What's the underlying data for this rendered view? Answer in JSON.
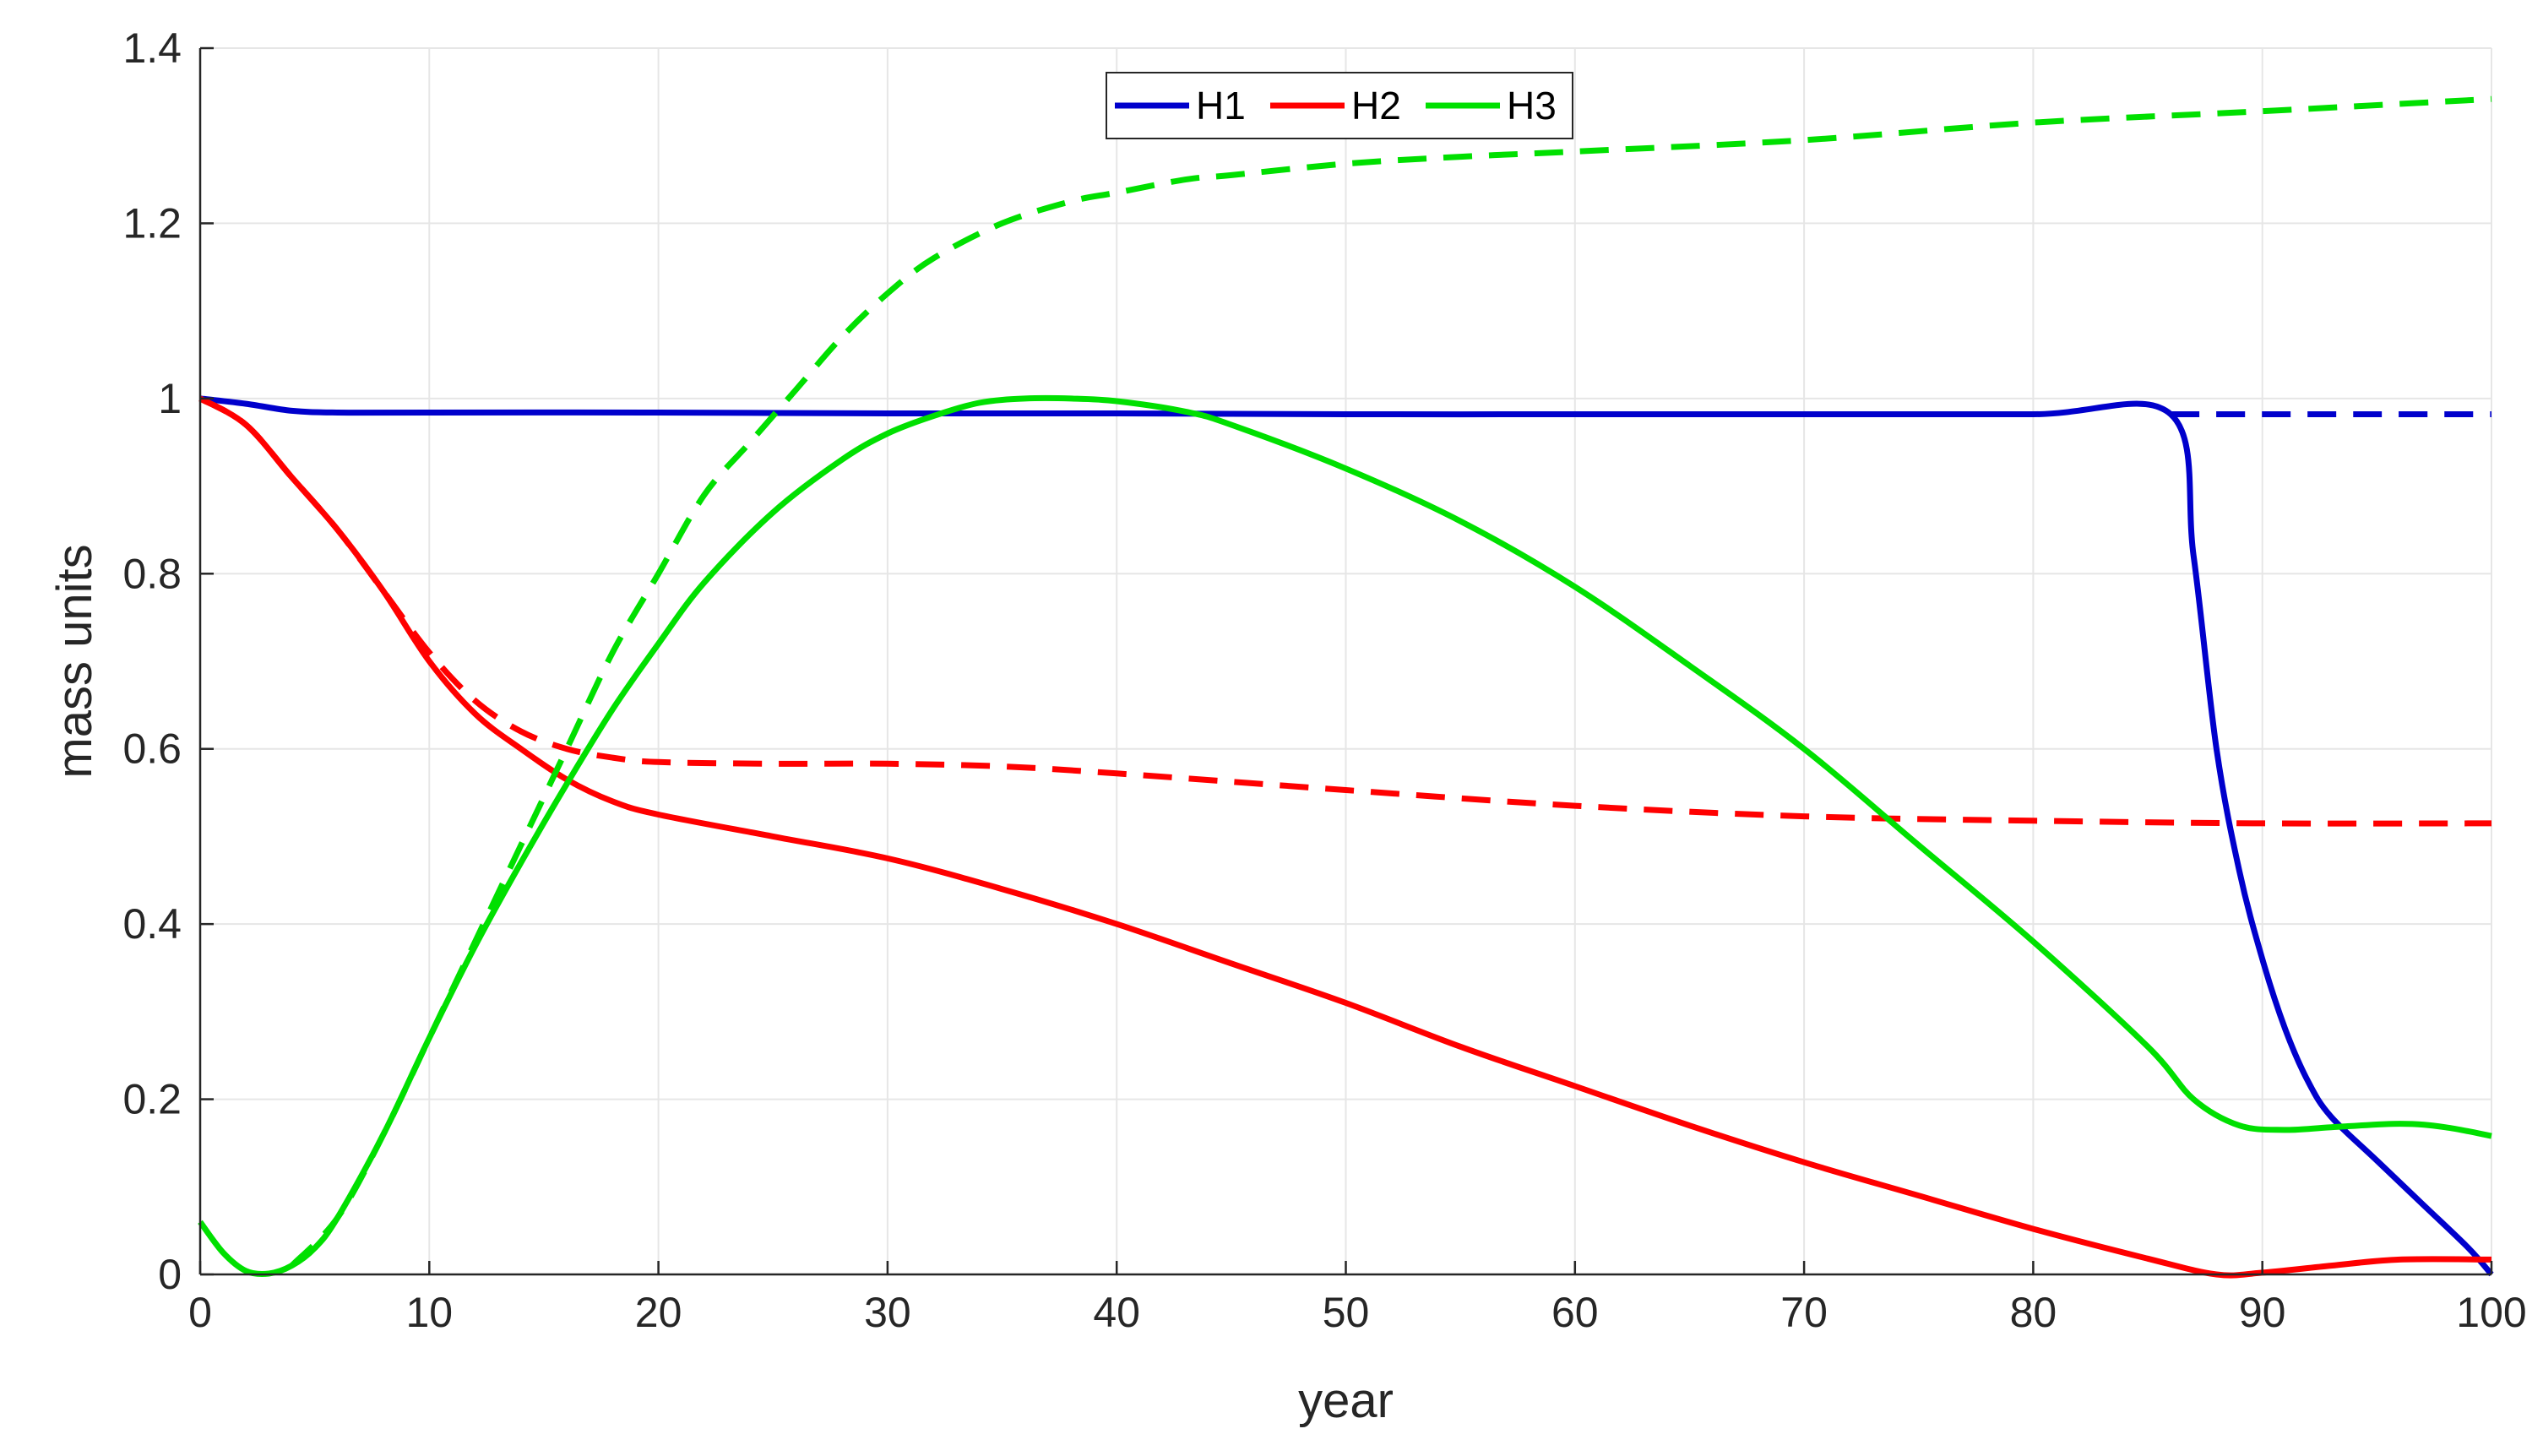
{
  "chart_data": {
    "type": "line",
    "title": "",
    "xlabel": "year",
    "ylabel": "mass units",
    "xlim": [
      0,
      100
    ],
    "ylim": [
      0,
      1.4
    ],
    "xticks": [
      "0",
      "10",
      "20",
      "30",
      "40",
      "50",
      "60",
      "70",
      "80",
      "90",
      "100"
    ],
    "yticks": [
      "0",
      "0.2",
      "0.4",
      "0.6",
      "0.8",
      "1",
      "1.2",
      "1.4"
    ],
    "grid": true,
    "legend": {
      "placement": "top-center",
      "entries": [
        "H1",
        "H2",
        "H3"
      ]
    },
    "series": [
      {
        "name": "H1",
        "color": "#0000cc",
        "style": "solid",
        "x": [
          0,
          2,
          4,
          6,
          10,
          20,
          30,
          40,
          50,
          60,
          70,
          80,
          86,
          87,
          88,
          89,
          90,
          91,
          92,
          93,
          95,
          97,
          99,
          100
        ],
        "y": [
          1.0,
          0.994,
          0.986,
          0.984,
          0.984,
          0.984,
          0.983,
          0.983,
          0.982,
          0.982,
          0.982,
          0.982,
          0.982,
          0.82,
          0.6,
          0.46,
          0.36,
          0.28,
          0.22,
          0.18,
          0.13,
          0.08,
          0.03,
          0.0
        ]
      },
      {
        "name": "H1 (dashed)",
        "color": "#0000cc",
        "style": "dashed",
        "x": [
          86,
          90,
          95,
          100
        ],
        "y": [
          0.982,
          0.982,
          0.982,
          0.982
        ]
      },
      {
        "name": "H2",
        "color": "#ff0000",
        "style": "solid",
        "x": [
          0,
          2,
          4,
          6,
          8,
          10,
          12,
          14,
          16,
          18,
          20,
          25,
          30,
          35,
          40,
          45,
          50,
          55,
          60,
          65,
          70,
          75,
          80,
          85,
          88,
          90,
          93,
          96,
          100
        ],
        "y": [
          1.0,
          0.97,
          0.91,
          0.85,
          0.78,
          0.7,
          0.64,
          0.6,
          0.565,
          0.54,
          0.525,
          0.5,
          0.475,
          0.44,
          0.4,
          0.355,
          0.31,
          0.26,
          0.215,
          0.17,
          0.128,
          0.09,
          0.052,
          0.018,
          0.0,
          0.002,
          0.01,
          0.017,
          0.017
        ]
      },
      {
        "name": "H2 (dashed)",
        "color": "#ff0000",
        "style": "dashed",
        "x": [
          0,
          2,
          4,
          6,
          8,
          10,
          12,
          14,
          16,
          18,
          20,
          25,
          30,
          35,
          40,
          50,
          60,
          70,
          80,
          90,
          100
        ],
        "y": [
          1.0,
          0.97,
          0.91,
          0.85,
          0.78,
          0.71,
          0.655,
          0.62,
          0.6,
          0.59,
          0.585,
          0.583,
          0.583,
          0.58,
          0.572,
          0.553,
          0.535,
          0.523,
          0.518,
          0.515,
          0.515
        ]
      },
      {
        "name": "H3",
        "color": "#00e000",
        "style": "solid",
        "x": [
          0,
          1,
          2,
          3,
          4,
          5,
          6,
          8,
          10,
          12,
          14,
          16,
          18,
          20,
          22,
          25,
          28,
          30,
          32,
          34,
          36,
          38,
          40,
          43,
          45,
          50,
          55,
          60,
          65,
          70,
          75,
          80,
          85,
          87,
          89,
          91,
          93,
          96,
          98,
          100
        ],
        "y": [
          0.06,
          0.025,
          0.004,
          0.001,
          0.01,
          0.03,
          0.065,
          0.16,
          0.27,
          0.375,
          0.47,
          0.56,
          0.645,
          0.72,
          0.79,
          0.87,
          0.93,
          0.96,
          0.98,
          0.995,
          1.0,
          1.0,
          0.997,
          0.985,
          0.97,
          0.92,
          0.86,
          0.785,
          0.695,
          0.6,
          0.49,
          0.38,
          0.26,
          0.2,
          0.17,
          0.165,
          0.168,
          0.172,
          0.168,
          0.158
        ]
      },
      {
        "name": "H3 (dashed)",
        "color": "#00e000",
        "style": "dashed",
        "x": [
          4,
          6,
          8,
          10,
          12,
          14,
          16,
          18,
          20,
          22,
          24,
          26,
          28,
          30,
          32,
          35,
          38,
          40,
          43,
          45,
          50,
          55,
          60,
          70,
          80,
          90,
          100
        ],
        "y": [
          0.01,
          0.065,
          0.16,
          0.27,
          0.38,
          0.49,
          0.6,
          0.71,
          0.8,
          0.89,
          0.95,
          1.01,
          1.07,
          1.12,
          1.16,
          1.2,
          1.225,
          1.235,
          1.25,
          1.255,
          1.268,
          1.276,
          1.282,
          1.295,
          1.315,
          1.328,
          1.342
        ]
      }
    ]
  }
}
